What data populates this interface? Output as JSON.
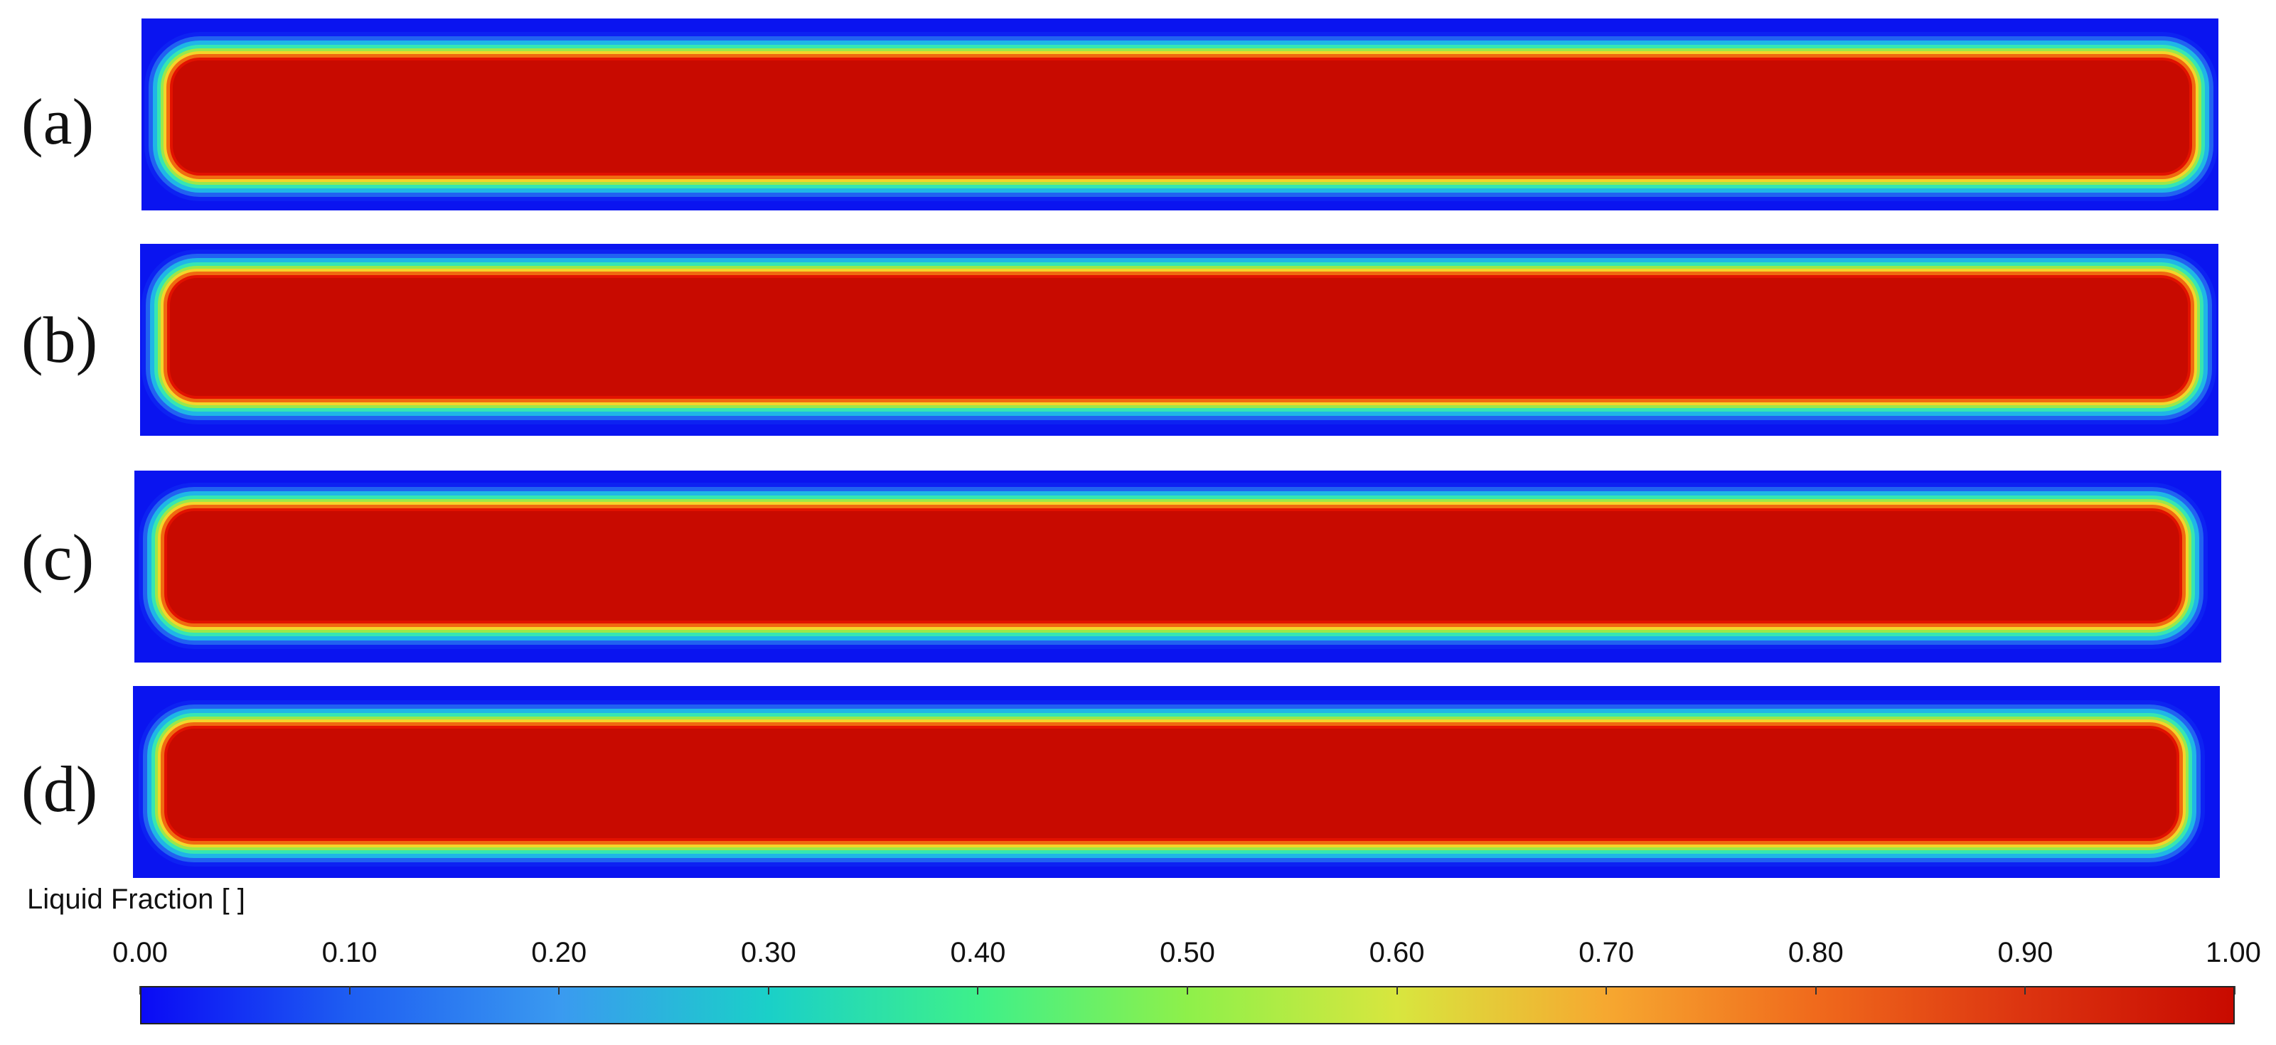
{
  "panels": [
    {
      "label": "(a)"
    },
    {
      "label": "(b)"
    },
    {
      "label": "(c)"
    },
    {
      "label": "(d)"
    }
  ],
  "colorbar": {
    "title": "Liquid Fraction [  ]",
    "ticks": [
      "0.00",
      "0.10",
      "0.20",
      "0.30",
      "0.40",
      "0.50",
      "0.60",
      "0.70",
      "0.80",
      "0.90",
      "1.00"
    ],
    "range": [
      0,
      1
    ],
    "colors": {
      "min": "#0a0af5",
      "mid": "#8ef04a",
      "max": "#c80a00"
    }
  }
}
